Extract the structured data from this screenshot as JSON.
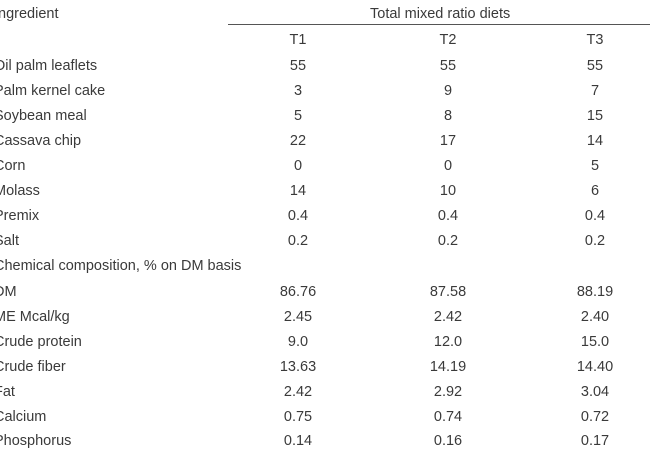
{
  "header": {
    "ingredient_label": "Ingredient",
    "group_label": "Total mixed ratio diets",
    "columns": [
      "T1",
      "T2",
      "T3"
    ]
  },
  "ingredients": [
    {
      "name": "Oil palm leaflets",
      "values": [
        "55",
        "55",
        "55"
      ]
    },
    {
      "name": "Palm kernel cake",
      "values": [
        "3",
        "9",
        "7"
      ]
    },
    {
      "name": "Soybean meal",
      "values": [
        "5",
        "8",
        "15"
      ]
    },
    {
      "name": "Cassava chip",
      "values": [
        "22",
        "17",
        "14"
      ]
    },
    {
      "name": "Corn",
      "values": [
        "0",
        "0",
        "5"
      ]
    },
    {
      "name": "Molass",
      "values": [
        "14",
        "10",
        "6"
      ]
    },
    {
      "name": "Premix",
      "values": [
        "0.4",
        "0.4",
        "0.4"
      ]
    },
    {
      "name": "Salt",
      "values": [
        "0.2",
        "0.2",
        "0.2"
      ]
    }
  ],
  "chemical": {
    "label": "Chemical composition,  % on DM basis",
    "rows": [
      {
        "name": "DM",
        "values": [
          "86.76",
          "87.58",
          "88.19"
        ]
      },
      {
        "name": "ME Mcal/kg",
        "values": [
          "2.45",
          "2.42",
          "2.40"
        ]
      },
      {
        "name": "Crude protein",
        "values": [
          "9.0",
          "12.0",
          "15.0"
        ]
      },
      {
        "name": "Crude fiber",
        "values": [
          "13.63",
          "14.19",
          "14.40"
        ]
      },
      {
        "name": "Fat",
        "values": [
          "2.42",
          "2.92",
          "3.04"
        ]
      },
      {
        "name": "Calcium",
        "values": [
          "0.75",
          "0.74",
          "0.72"
        ]
      },
      {
        "name": "Phosphorus",
        "values": [
          "0.14",
          "0.16",
          "0.17"
        ]
      }
    ]
  }
}
